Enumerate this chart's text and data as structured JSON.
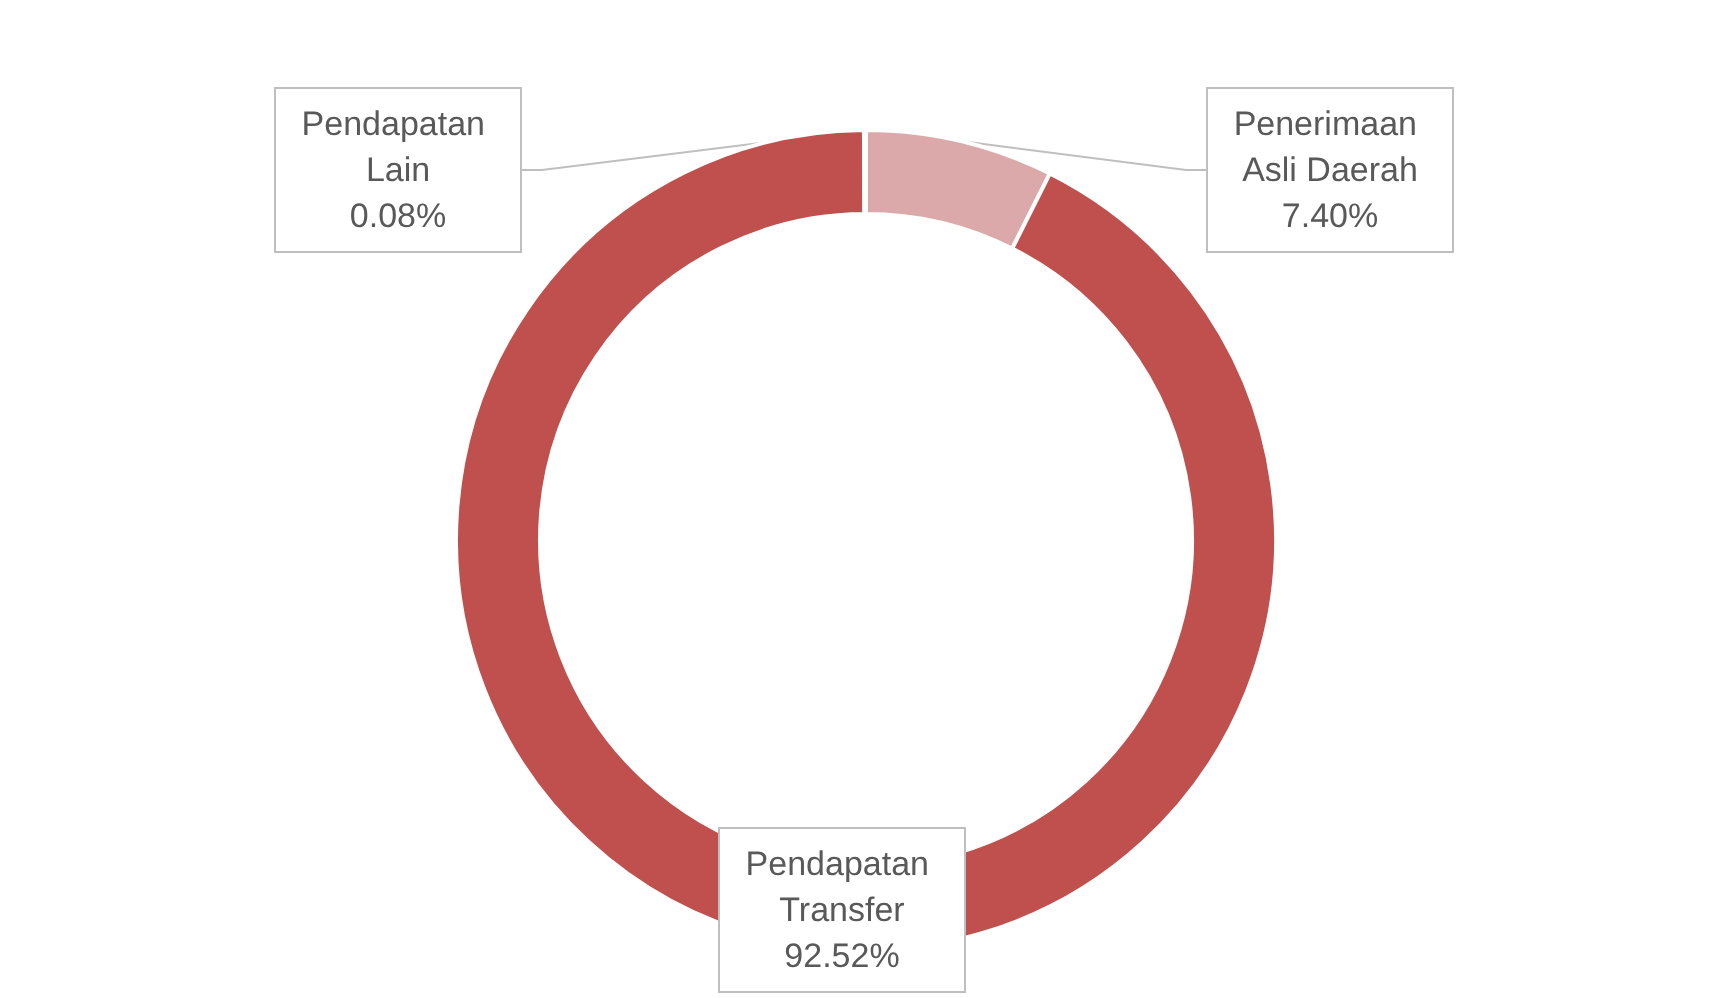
{
  "chart_data": {
    "type": "donut",
    "categories": [
      "Penerimaan Asli Daerah",
      "Pendapatan Transfer",
      "Pendapatan Lain"
    ],
    "values": [
      7.4,
      92.52,
      0.08
    ],
    "colors": [
      "#dba9aa",
      "#c0504d",
      "#c0504d"
    ],
    "value_labels": [
      "7.40%",
      "92.52%",
      "0.08%"
    ],
    "legend": false
  }
}
